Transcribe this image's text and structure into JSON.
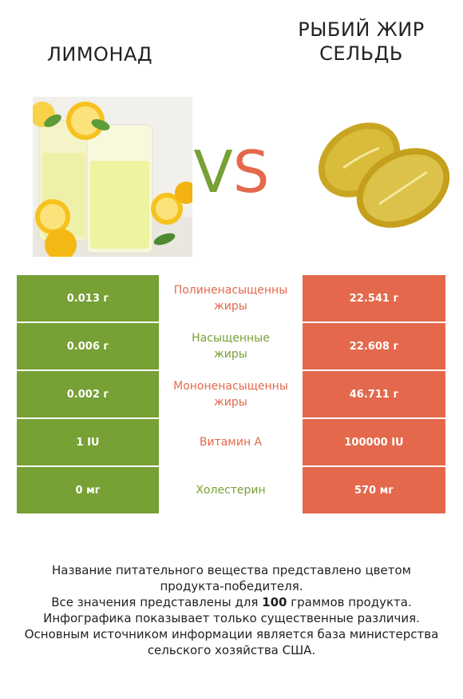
{
  "header": {
    "left_title": "ЛИМОНАД",
    "right_title_line1": "РЫБИЙ ЖИР",
    "right_title_line2": "СЕЛЬДЬ",
    "vs_v": "V",
    "vs_s": "S"
  },
  "colors": {
    "green": "#77a035",
    "red": "#e4684b"
  },
  "rows": [
    {
      "left": "0.013 г",
      "label_line1": "Полиненасыщенны",
      "label_line2": "жиры",
      "right": "22.541 г",
      "winner": "red"
    },
    {
      "left": "0.006 г",
      "label_line1": "Насыщенные",
      "label_line2": "жиры",
      "right": "22.608 г",
      "winner": "green"
    },
    {
      "left": "0.002 г",
      "label_line1": "Мононенасыщенны",
      "label_line2": "жиры",
      "right": "46.711 г",
      "winner": "red"
    },
    {
      "left": "1 IU",
      "label_line1": "Витамин А",
      "label_line2": "",
      "right": "100000 IU",
      "winner": "red"
    },
    {
      "left": "0 мг",
      "label_line1": "Холестерин",
      "label_line2": "",
      "right": "570 мг",
      "winner": "green"
    }
  ],
  "footer": {
    "line1": "Название питательного вещества представлено цветом",
    "line2": "продукта-победителя.",
    "line3_pre": "Все значения представлены для ",
    "line3_bold": "100",
    "line3_post": " граммов продукта.",
    "line4": "Инфографика показывает только существенные различия.",
    "line5": "Основным источником информации является база министерства",
    "line6": "сельского хозяйства США."
  }
}
